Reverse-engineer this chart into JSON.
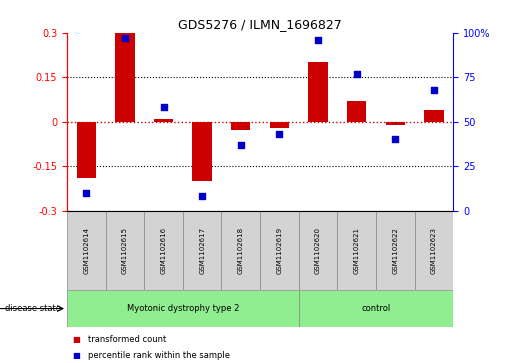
{
  "title": "GDS5276 / ILMN_1696827",
  "samples": [
    "GSM1102614",
    "GSM1102615",
    "GSM1102616",
    "GSM1102617",
    "GSM1102618",
    "GSM1102619",
    "GSM1102620",
    "GSM1102621",
    "GSM1102622",
    "GSM1102623"
  ],
  "transformed_count": [
    -0.19,
    0.3,
    0.01,
    -0.2,
    -0.03,
    -0.02,
    0.2,
    0.07,
    -0.01,
    0.04
  ],
  "percentile_rank": [
    10,
    97,
    58,
    8,
    37,
    43,
    96,
    77,
    40,
    68
  ],
  "disease_groups": [
    {
      "label": "Myotonic dystrophy type 2",
      "start": 0,
      "end": 6,
      "color": "#90EE90"
    },
    {
      "label": "control",
      "start": 6,
      "end": 10,
      "color": "#90EE90"
    }
  ],
  "ylim_left": [
    -0.3,
    0.3
  ],
  "ylim_right": [
    0,
    100
  ],
  "yticks_left": [
    -0.3,
    -0.15,
    0,
    0.15,
    0.3
  ],
  "yticks_right": [
    0,
    25,
    50,
    75,
    100
  ],
  "bar_color": "#CC0000",
  "dot_color": "#0000CC",
  "hline_color": "#CC0000",
  "grid_hlines": [
    -0.15,
    0.15
  ],
  "legend_labels": [
    "transformed count",
    "percentile rank within the sample"
  ],
  "figsize": [
    5.15,
    3.63
  ],
  "dpi": 100
}
